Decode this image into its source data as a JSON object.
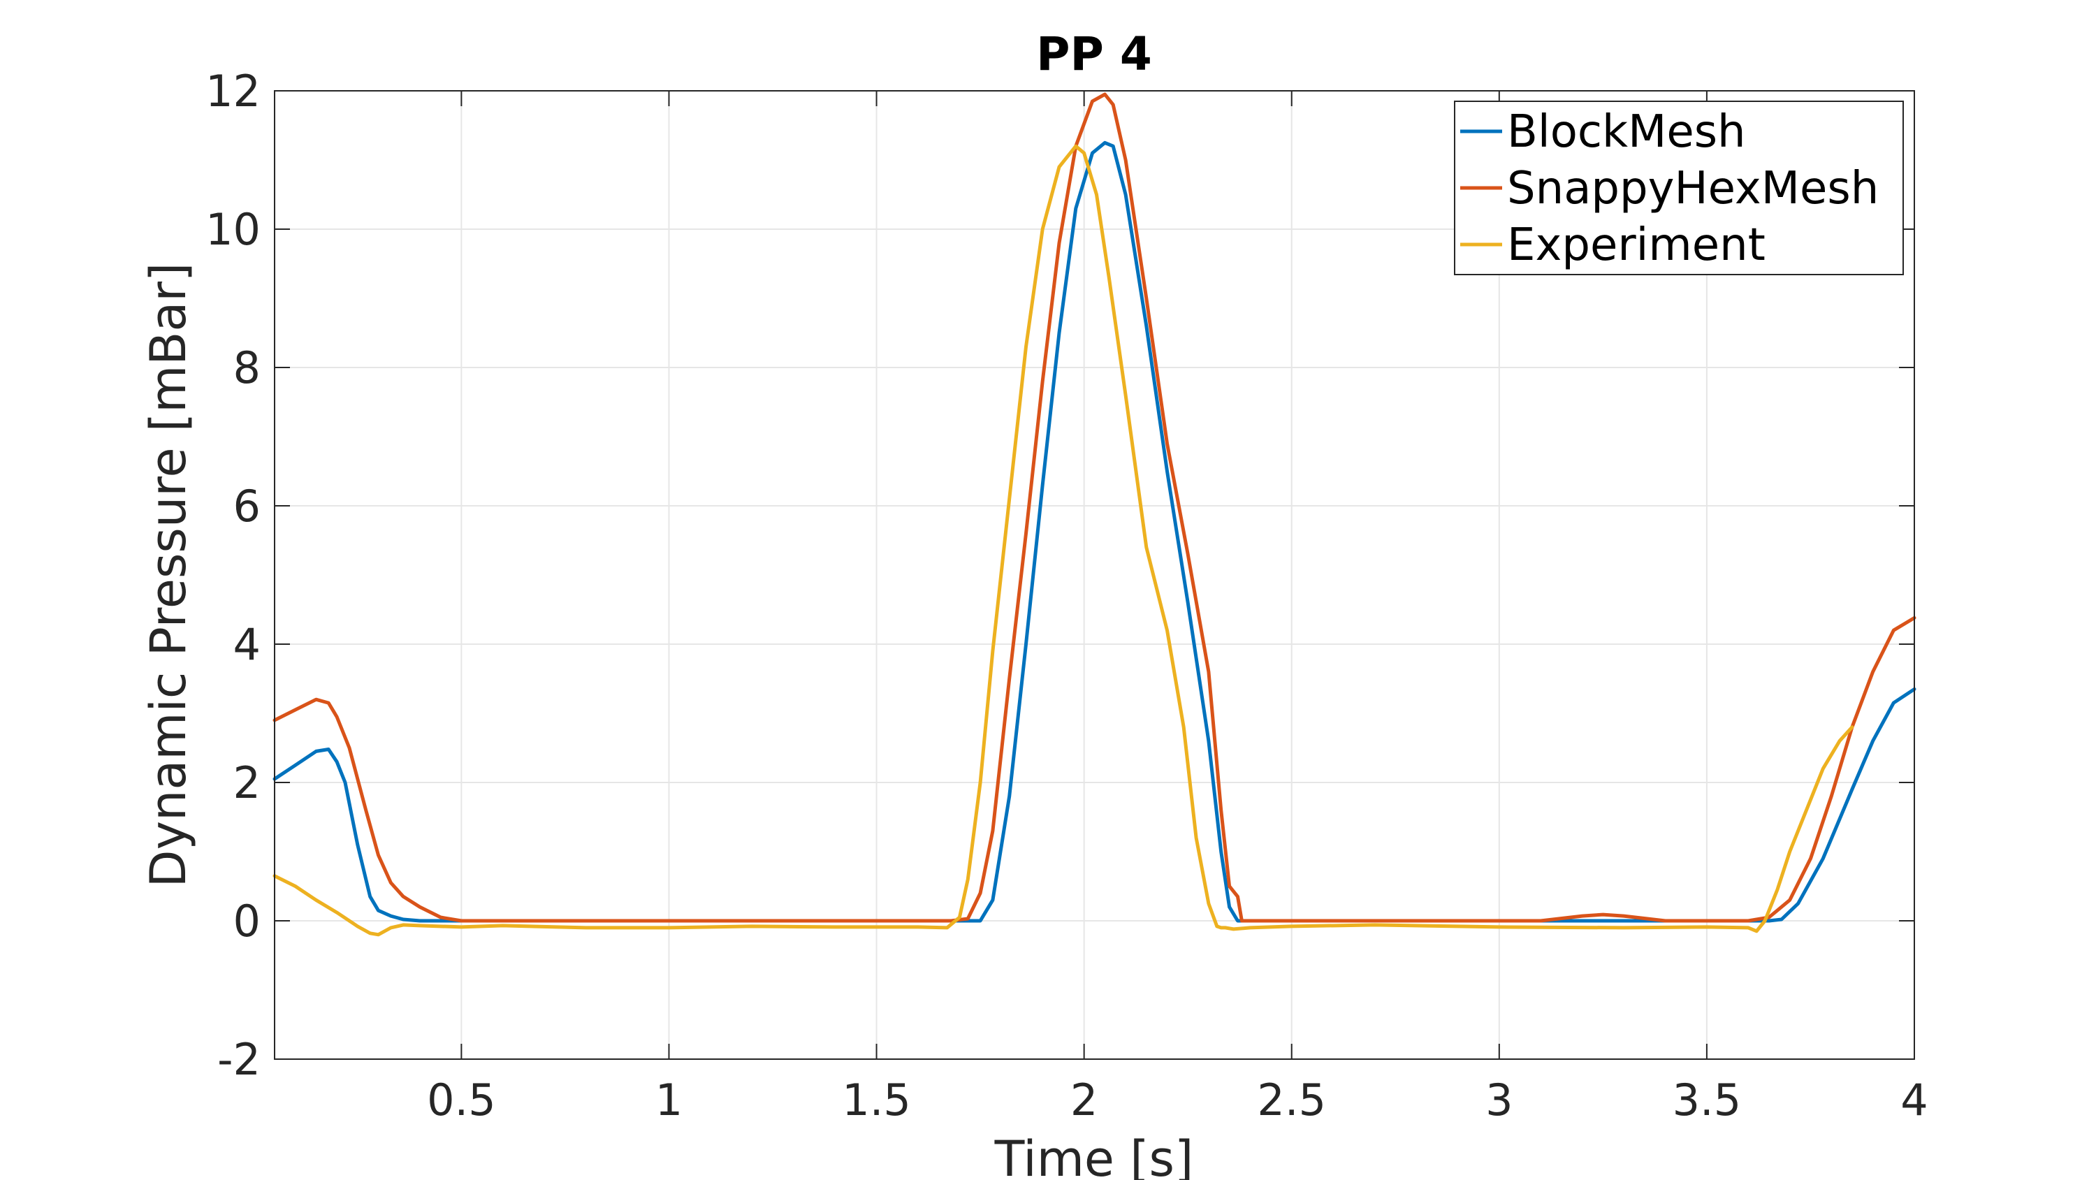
{
  "chart_data": {
    "type": "line",
    "title": "PP 4",
    "xlabel": "Time [s]",
    "ylabel": "Dynamic Pressure [mBar]",
    "xlim": [
      0.05,
      4
    ],
    "ylim": [
      -2,
      12
    ],
    "xticks": [
      0.5,
      1,
      1.5,
      2,
      2.5,
      3,
      3.5,
      4
    ],
    "xtick_labels": [
      "0.5",
      "1",
      "1.5",
      "2",
      "2.5",
      "3",
      "3.5",
      "4"
    ],
    "yticks": [
      -2,
      0,
      2,
      4,
      6,
      8,
      10,
      12
    ],
    "ytick_labels": [
      "-2",
      "0",
      "2",
      "4",
      "6",
      "8",
      "10",
      "12"
    ],
    "grid": true,
    "legend_position": "top-right",
    "series": [
      {
        "name": "BlockMesh",
        "color": "#0072BD",
        "x": [
          0.05,
          0.1,
          0.15,
          0.18,
          0.2,
          0.22,
          0.25,
          0.28,
          0.3,
          0.33,
          0.36,
          0.4,
          0.45,
          0.5,
          1.0,
          1.5,
          1.7,
          1.73,
          1.75,
          1.78,
          1.82,
          1.86,
          1.9,
          1.94,
          1.98,
          2.02,
          2.05,
          2.07,
          2.1,
          2.15,
          2.2,
          2.25,
          2.3,
          2.33,
          2.35,
          2.37,
          2.38,
          2.4,
          2.5,
          3.0,
          3.5,
          3.6,
          3.65,
          3.68,
          3.72,
          3.78,
          3.85,
          3.9,
          3.95,
          4.0
        ],
        "y": [
          2.05,
          2.25,
          2.45,
          2.48,
          2.3,
          2.0,
          1.1,
          0.35,
          0.15,
          0.07,
          0.02,
          0.0,
          0.0,
          0.0,
          0.0,
          0.0,
          0.0,
          0.0,
          0.0,
          0.3,
          1.8,
          4.0,
          6.3,
          8.5,
          10.3,
          11.1,
          11.25,
          11.2,
          10.5,
          8.6,
          6.5,
          4.6,
          2.6,
          1.0,
          0.2,
          0.0,
          0.0,
          0.0,
          0.0,
          0.0,
          0.0,
          0.0,
          0.0,
          0.02,
          0.25,
          0.9,
          1.9,
          2.6,
          3.15,
          3.35
        ]
      },
      {
        "name": "SnappyHexMesh",
        "color": "#D95319",
        "x": [
          0.05,
          0.1,
          0.15,
          0.18,
          0.2,
          0.23,
          0.27,
          0.3,
          0.33,
          0.36,
          0.4,
          0.45,
          0.5,
          1.0,
          1.5,
          1.68,
          1.72,
          1.75,
          1.78,
          1.82,
          1.86,
          1.9,
          1.94,
          1.98,
          2.02,
          2.05,
          2.07,
          2.1,
          2.15,
          2.2,
          2.25,
          2.3,
          2.33,
          2.35,
          2.37,
          2.38,
          2.4,
          2.5,
          3.0,
          3.1,
          3.2,
          3.25,
          3.3,
          3.4,
          3.6,
          3.65,
          3.7,
          3.75,
          3.8,
          3.85,
          3.9,
          3.95,
          4.0
        ],
        "y": [
          2.9,
          3.05,
          3.2,
          3.15,
          2.95,
          2.5,
          1.6,
          0.95,
          0.55,
          0.35,
          0.2,
          0.05,
          0.0,
          0.0,
          0.0,
          0.0,
          0.03,
          0.4,
          1.3,
          3.5,
          5.6,
          7.8,
          9.8,
          11.2,
          11.85,
          11.95,
          11.8,
          11.0,
          9.0,
          6.9,
          5.3,
          3.6,
          1.6,
          0.5,
          0.35,
          0.0,
          0.0,
          0.0,
          0.0,
          0.0,
          0.07,
          0.09,
          0.07,
          0.0,
          0.0,
          0.05,
          0.3,
          0.9,
          1.8,
          2.8,
          3.6,
          4.2,
          4.38
        ]
      },
      {
        "name": "Experiment",
        "color": "#EDB120",
        "x": [
          0.05,
          0.1,
          0.15,
          0.2,
          0.25,
          0.28,
          0.3,
          0.33,
          0.36,
          0.4,
          0.5,
          0.6,
          0.8,
          1.0,
          1.2,
          1.4,
          1.6,
          1.67,
          1.7,
          1.72,
          1.75,
          1.78,
          1.82,
          1.86,
          1.9,
          1.94,
          1.98,
          2.0,
          2.03,
          2.06,
          2.1,
          2.15,
          2.2,
          2.24,
          2.27,
          2.3,
          2.32,
          2.33,
          2.34,
          2.36,
          2.4,
          2.5,
          2.7,
          3.0,
          3.3,
          3.5,
          3.6,
          3.62,
          3.64,
          3.67,
          3.7,
          3.74,
          3.78,
          3.82,
          3.85
        ],
        "y": [
          0.65,
          0.5,
          0.3,
          0.12,
          -0.08,
          -0.18,
          -0.2,
          -0.1,
          -0.06,
          -0.07,
          -0.09,
          -0.07,
          -0.1,
          -0.1,
          -0.08,
          -0.09,
          -0.09,
          -0.1,
          0.05,
          0.6,
          2.0,
          3.9,
          6.1,
          8.3,
          10.0,
          10.9,
          11.2,
          11.1,
          10.5,
          9.3,
          7.6,
          5.4,
          4.2,
          2.8,
          1.2,
          0.25,
          -0.08,
          -0.1,
          -0.1,
          -0.12,
          -0.1,
          -0.08,
          -0.06,
          -0.09,
          -0.1,
          -0.09,
          -0.1,
          -0.15,
          0.0,
          0.45,
          1.0,
          1.6,
          2.2,
          2.6,
          2.8
        ]
      }
    ]
  }
}
